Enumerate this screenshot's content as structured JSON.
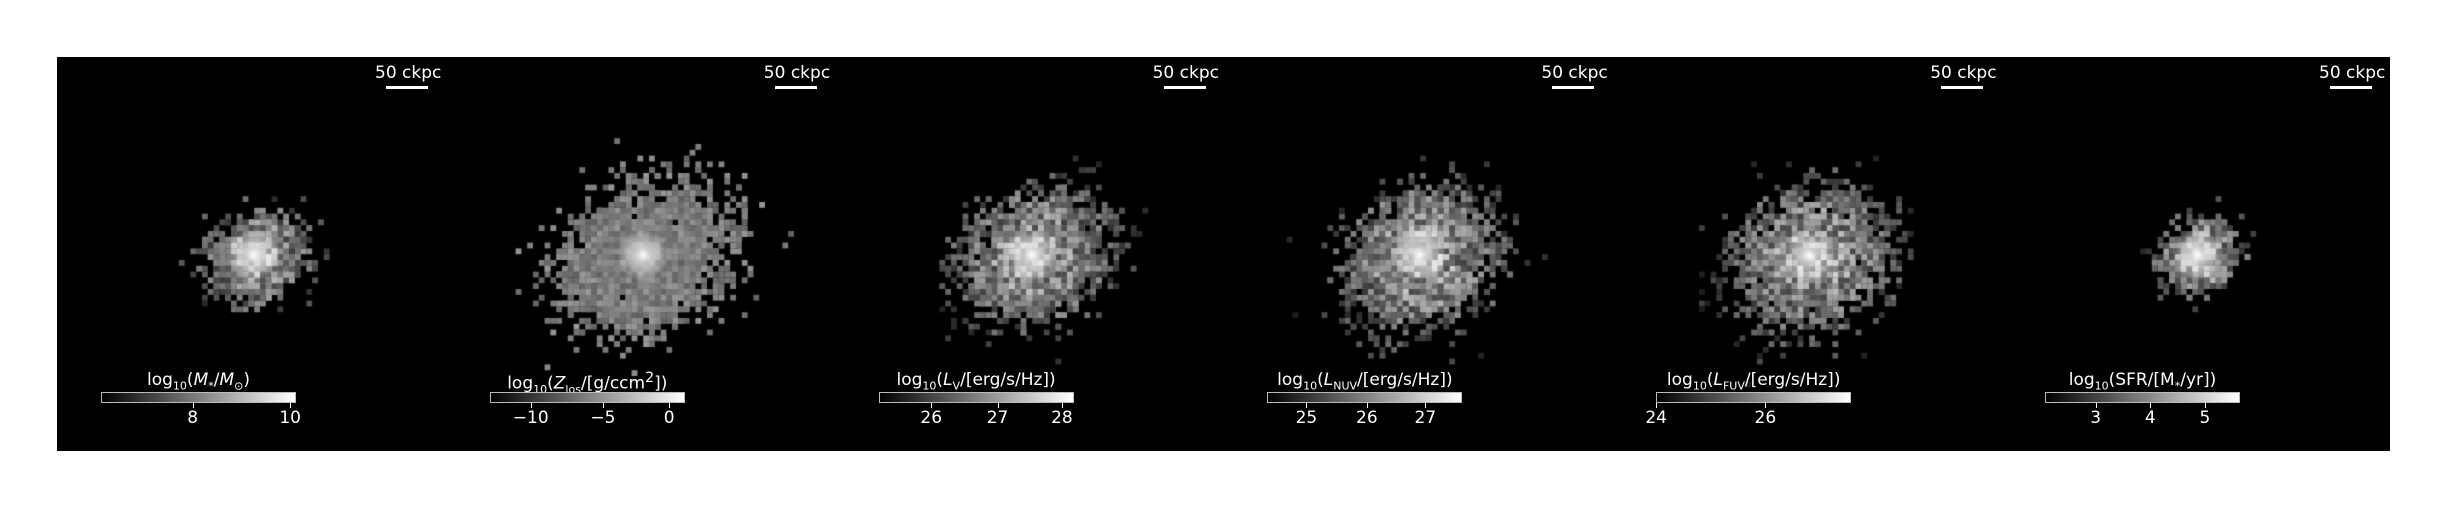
{
  "figure": {
    "scale_bar_label": "50 ckpc",
    "panels": [
      {
        "id": "stellar-mass",
        "label_html": "log<sub>10</sub>(<i>M</i><sub>*</sub>/<i>M</i><sub>⊙</sub>)",
        "ticks": [
          "8",
          "10"
        ],
        "tick_frac": [
          0.47,
          0.97
        ],
        "spread": 0.55,
        "density": 0.45,
        "peak": 1.0
      },
      {
        "id": "metallicity",
        "label_html": "log<sub>10</sub>(<i>Z</i><sub>los</sub>/[g/ccm<sup>2</sup>])",
        "ticks": [
          "−10",
          "−5",
          "0"
        ],
        "tick_frac": [
          0.21,
          0.58,
          0.92
        ],
        "spread": 1.0,
        "density": 0.85,
        "peak": 0.85
      },
      {
        "id": "v-band",
        "label_html": "log<sub>10</sub>(<i>L</i><sub>V</sub>/[erg/s/Hz])",
        "ticks": [
          "26",
          "27",
          "28"
        ],
        "tick_frac": [
          0.27,
          0.61,
          0.94
        ],
        "spread": 0.85,
        "density": 0.75,
        "peak": 1.0
      },
      {
        "id": "nuv",
        "label_html": "log<sub>10</sub>(<i>L</i><sub>NUV</sub>/[erg/s/Hz])",
        "ticks": [
          "25",
          "26",
          "27"
        ],
        "tick_frac": [
          0.2,
          0.51,
          0.81
        ],
        "spread": 0.9,
        "density": 0.8,
        "peak": 1.0
      },
      {
        "id": "fuv",
        "label_html": "log<sub>10</sub>(<i>L</i><sub>FUV</sub>/[erg/s/Hz])",
        "ticks": [
          "24",
          "26"
        ],
        "tick_frac": [
          0.0,
          0.56
        ],
        "spread": 0.9,
        "density": 0.8,
        "peak": 1.0
      },
      {
        "id": "sfr",
        "label_html": "log<sub>10</sub>(SFR/[M<sub>*</sub>/yr])",
        "ticks": [
          "3",
          "4",
          "5"
        ],
        "tick_frac": [
          0.26,
          0.54,
          0.82
        ],
        "spread": 0.45,
        "density": 0.25,
        "peak": 1.0
      }
    ]
  }
}
